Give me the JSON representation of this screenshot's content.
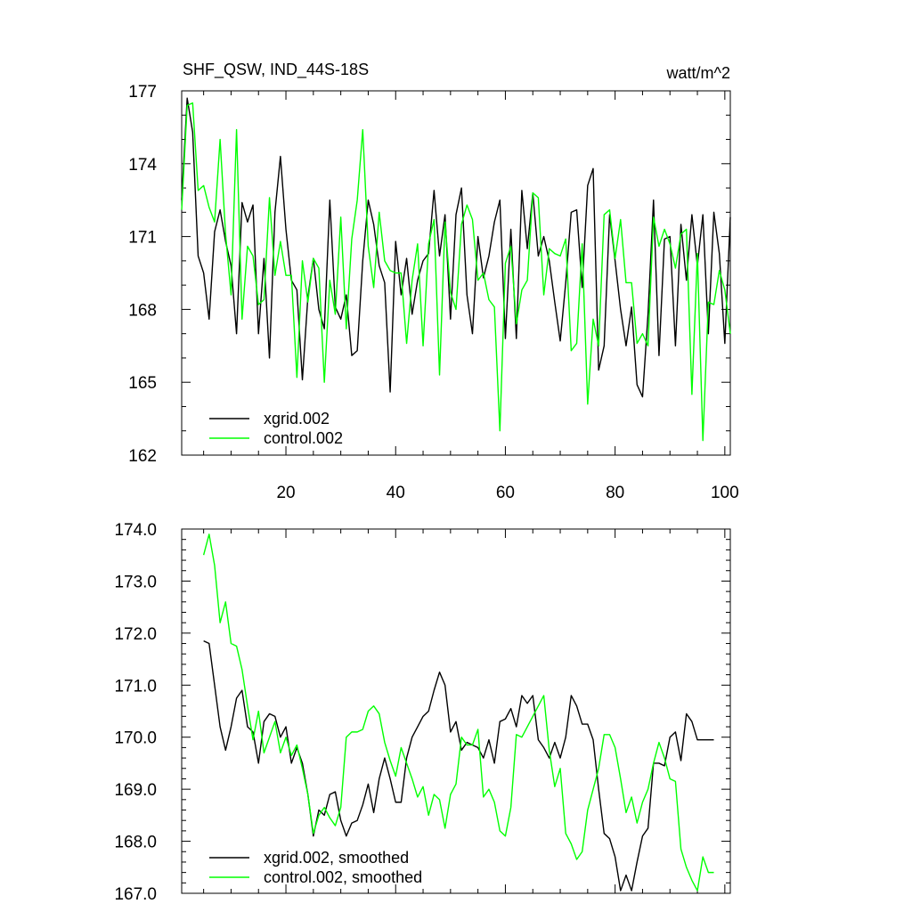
{
  "page": {
    "title_left": "SHF_QSW, IND_44S-18S",
    "title_right": "watt/m^2"
  },
  "chart_data": [
    {
      "type": "line",
      "title": "SHF_QSW, IND_44S-18S",
      "units": "watt/m^2",
      "xlim": [
        1,
        101
      ],
      "ylim": [
        162,
        177
      ],
      "x_ticks": [
        20,
        40,
        60,
        80,
        100
      ],
      "y_ticks": [
        162,
        165,
        168,
        171,
        174,
        177
      ],
      "legend_position": "bottom-left",
      "x": [
        1,
        2,
        3,
        4,
        5,
        6,
        7,
        8,
        9,
        10,
        11,
        12,
        13,
        14,
        15,
        16,
        17,
        18,
        19,
        20,
        21,
        22,
        23,
        24,
        25,
        26,
        27,
        28,
        29,
        30,
        31,
        32,
        33,
        34,
        35,
        36,
        37,
        38,
        39,
        40,
        41,
        42,
        43,
        44,
        45,
        46,
        47,
        48,
        49,
        50,
        51,
        52,
        53,
        54,
        55,
        56,
        57,
        58,
        59,
        60,
        61,
        62,
        63,
        64,
        65,
        66,
        67,
        68,
        69,
        70,
        71,
        72,
        73,
        74,
        75,
        76,
        77,
        78,
        79,
        80,
        81,
        82,
        83,
        84,
        85,
        86,
        87,
        88,
        89,
        90,
        91,
        92,
        93,
        94,
        95,
        96,
        97,
        98,
        99,
        100,
        101
      ],
      "series": [
        {
          "name": "xgrid.002",
          "color": "#000000",
          "values": [
            172.5,
            176.7,
            175.3,
            170.2,
            169.5,
            167.6,
            171.2,
            172.1,
            170.8,
            169.8,
            167.0,
            172.4,
            171.6,
            172.3,
            167.0,
            170.1,
            166.0,
            172.0,
            174.3,
            171.3,
            169.2,
            168.8,
            165.1,
            168.5,
            170.1,
            168.0,
            167.2,
            172.5,
            168.1,
            167.6,
            168.6,
            166.1,
            166.3,
            170.0,
            172.5,
            171.5,
            169.8,
            169.1,
            164.6,
            170.8,
            168.6,
            170.1,
            167.8,
            169.2,
            170.0,
            170.3,
            172.9,
            170.2,
            171.9,
            167.6,
            171.9,
            173.0,
            168.6,
            167.0,
            171.0,
            169.3,
            170.2,
            171.6,
            172.5,
            166.8,
            171.3,
            166.8,
            172.9,
            170.5,
            172.8,
            170.2,
            171.0,
            170.0,
            168.3,
            166.7,
            169.1,
            172.0,
            172.1,
            168.9,
            173.1,
            173.8,
            165.5,
            166.5,
            171.9,
            170.0,
            168.0,
            166.5,
            168.1,
            164.9,
            164.4,
            167.8,
            172.5,
            166.1,
            170.9,
            171.0,
            166.5,
            171.5,
            169.2,
            171.9,
            169.8,
            171.9,
            167.0,
            172.0,
            170.3,
            166.6,
            171.8
          ]
        },
        {
          "name": "control.002",
          "color": "#00ff00",
          "values": [
            172.1,
            176.4,
            176.5,
            172.9,
            173.1,
            172.2,
            171.6,
            175.0,
            171.1,
            168.6,
            175.4,
            167.6,
            170.6,
            170.2,
            168.2,
            168.4,
            172.6,
            169.4,
            170.8,
            169.4,
            169.4,
            165.2,
            170.0,
            168.3,
            170.1,
            169.7,
            165.0,
            169.2,
            167.8,
            171.8,
            167.2,
            170.9,
            172.5,
            175.4,
            170.6,
            168.9,
            172.0,
            170.0,
            169.6,
            169.5,
            169.5,
            166.6,
            169.2,
            170.7,
            166.5,
            170.7,
            171.7,
            165.3,
            171.6,
            168.7,
            168.0,
            171.5,
            172.3,
            171.7,
            169.2,
            169.5,
            168.4,
            168.1,
            163.0,
            169.9,
            170.6,
            167.4,
            168.8,
            169.2,
            172.8,
            172.6,
            168.6,
            170.5,
            170.3,
            170.2,
            170.9,
            166.3,
            166.6,
            170.7,
            164.1,
            167.6,
            166.5,
            171.9,
            172.1,
            170.1,
            171.7,
            169.1,
            169.1,
            166.6,
            167.0,
            166.5,
            171.8,
            170.6,
            171.3,
            170.7,
            169.7,
            171.1,
            171.3,
            164.5,
            170.3,
            162.6,
            168.3,
            168.2,
            169.6,
            168.8,
            167.0
          ]
        }
      ]
    },
    {
      "type": "line",
      "title": "",
      "xlim": [
        1,
        101
      ],
      "ylim": [
        167.0,
        174.0
      ],
      "y_ticks": [
        "167.0",
        "168.0",
        "169.0",
        "170.0",
        "171.0",
        "172.0",
        "173.0",
        "174.0"
      ],
      "legend_position": "bottom-left",
      "x": [
        5,
        6,
        7,
        8,
        9,
        10,
        11,
        12,
        13,
        14,
        15,
        16,
        17,
        18,
        19,
        20,
        21,
        22,
        23,
        24,
        25,
        26,
        27,
        28,
        29,
        30,
        31,
        32,
        33,
        34,
        35,
        36,
        37,
        38,
        39,
        40,
        41,
        42,
        43,
        44,
        45,
        46,
        47,
        48,
        49,
        50,
        51,
        52,
        53,
        54,
        55,
        56,
        57,
        58,
        59,
        60,
        61,
        62,
        63,
        64,
        65,
        66,
        67,
        68,
        69,
        70,
        71,
        72,
        73,
        74,
        75,
        76,
        77,
        78,
        79,
        80,
        81,
        82,
        83,
        84,
        85,
        86,
        87,
        88,
        89,
        90,
        91,
        92,
        93,
        94,
        95,
        96,
        97,
        98
      ],
      "series": [
        {
          "name": "xgrid.002, smoothed",
          "color": "#000000",
          "values": [
            171.85,
            171.8,
            171.0,
            170.2,
            169.75,
            170.2,
            170.75,
            170.9,
            170.2,
            170.1,
            169.5,
            170.3,
            170.45,
            170.4,
            170.0,
            170.2,
            169.5,
            169.8,
            169.5,
            168.9,
            168.1,
            168.6,
            168.5,
            168.9,
            168.95,
            168.4,
            168.1,
            168.35,
            168.4,
            168.7,
            169.1,
            168.55,
            169.2,
            169.6,
            169.2,
            168.75,
            168.75,
            169.6,
            170.0,
            170.2,
            170.4,
            170.5,
            170.9,
            171.25,
            171.0,
            170.1,
            170.3,
            169.75,
            169.9,
            169.85,
            169.8,
            169.6,
            169.95,
            169.5,
            170.3,
            170.35,
            170.55,
            170.2,
            170.8,
            170.65,
            170.8,
            169.95,
            169.8,
            169.6,
            169.9,
            169.6,
            170.0,
            170.8,
            170.6,
            170.25,
            170.25,
            169.95,
            169.0,
            168.15,
            168.05,
            167.7,
            167.05,
            167.35,
            167.05,
            167.6,
            168.1,
            168.25,
            169.5,
            169.5,
            169.45,
            170.0,
            170.1,
            169.55,
            170.45,
            170.3,
            169.95,
            169.95,
            169.95,
            169.95
          ]
        },
        {
          "name": "control.002, smoothed",
          "color": "#00ff00",
          "values": [
            173.5,
            173.9,
            173.3,
            172.2,
            172.6,
            171.8,
            171.75,
            171.3,
            170.6,
            169.95,
            170.5,
            169.7,
            170.0,
            170.3,
            169.7,
            170.0,
            169.65,
            169.85,
            169.4,
            168.9,
            168.15,
            168.5,
            168.65,
            168.45,
            168.3,
            168.65,
            170.0,
            170.1,
            170.1,
            170.15,
            170.5,
            170.6,
            170.45,
            169.9,
            169.55,
            169.25,
            169.8,
            169.5,
            169.2,
            168.85,
            169.05,
            168.5,
            168.9,
            168.8,
            168.25,
            168.9,
            169.1,
            170.0,
            169.85,
            169.85,
            170.15,
            168.85,
            169.0,
            168.75,
            168.2,
            168.1,
            168.65,
            170.05,
            170.0,
            170.2,
            170.4,
            170.6,
            170.8,
            169.75,
            169.05,
            169.4,
            168.15,
            167.95,
            167.65,
            167.8,
            168.6,
            169.0,
            169.4,
            170.05,
            170.05,
            169.8,
            169.2,
            168.55,
            168.85,
            168.35,
            168.75,
            169.0,
            169.5,
            169.9,
            169.6,
            169.2,
            169.15,
            167.85,
            167.5,
            167.25,
            167.05,
            167.7,
            167.4,
            167.4
          ]
        }
      ]
    }
  ]
}
